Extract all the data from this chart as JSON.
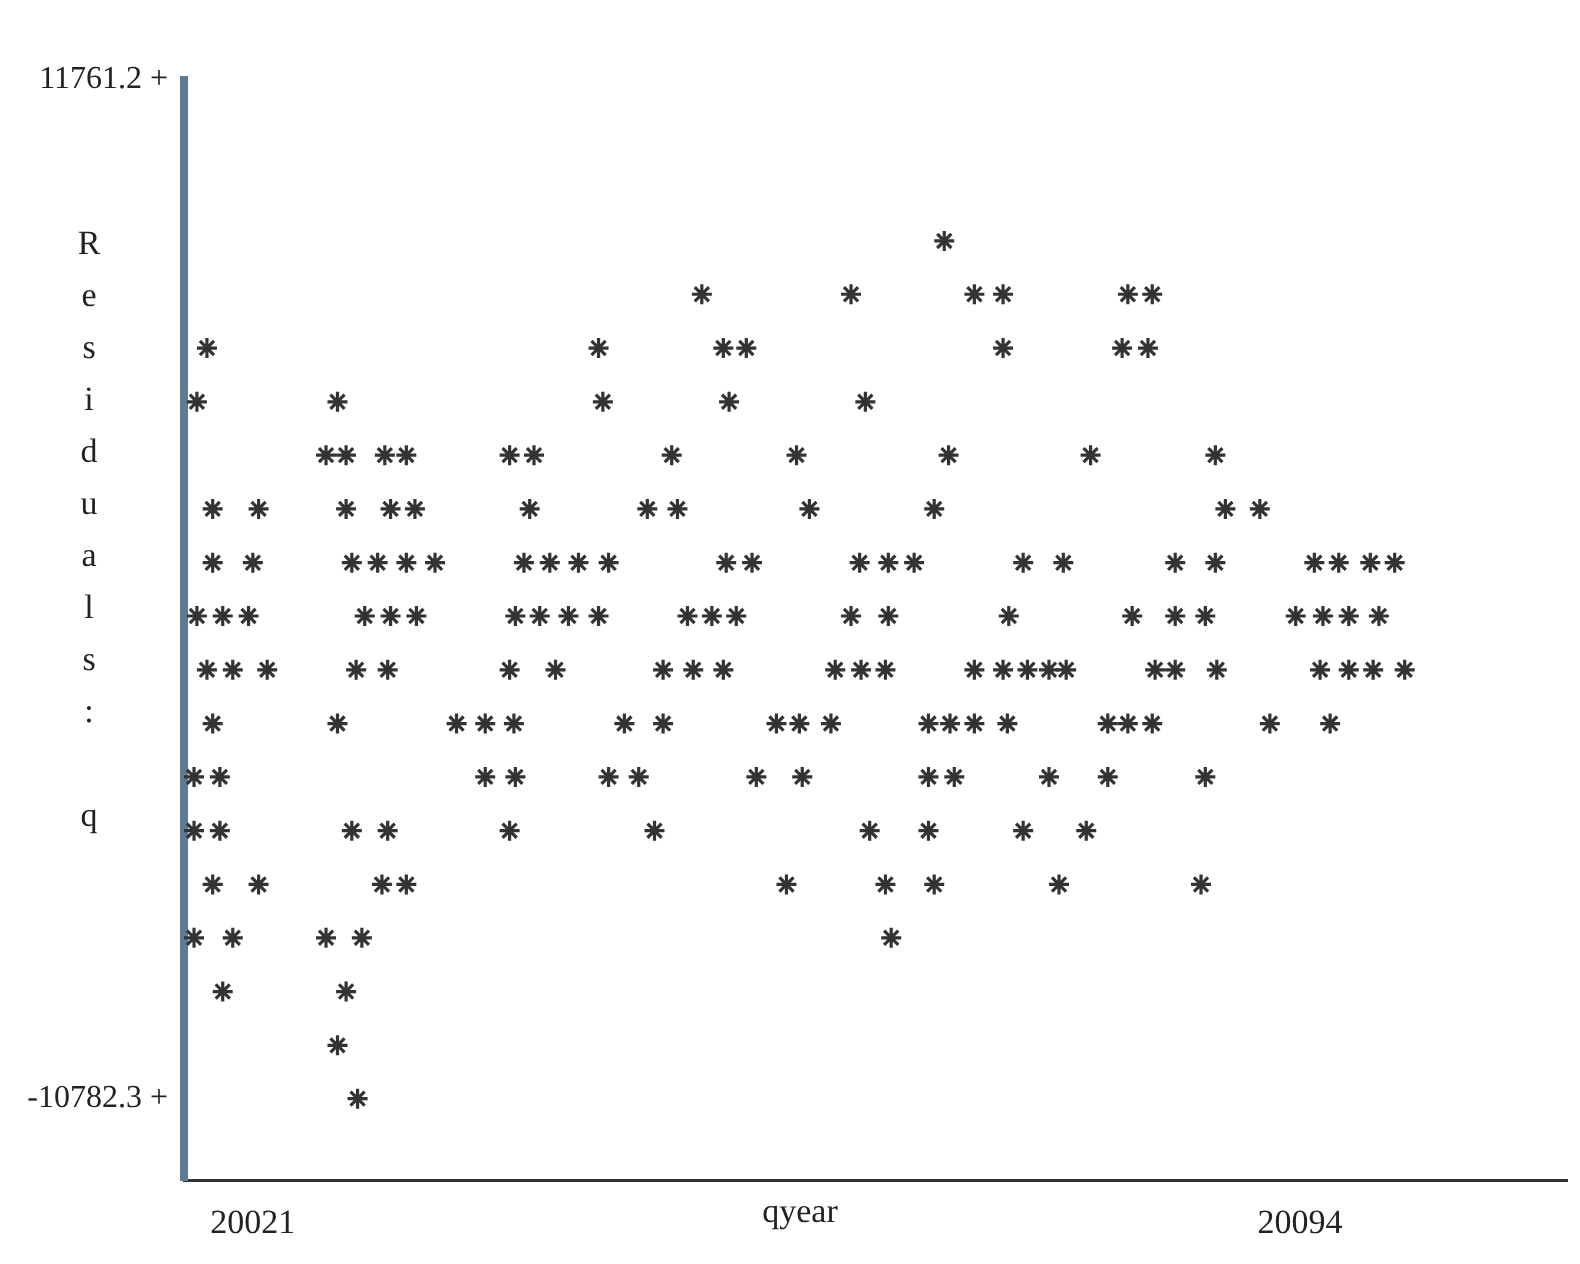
{
  "chart_data": {
    "type": "scatter",
    "xlabel": "qyear",
    "ylabel": "Residuals: q",
    "marker": "cross",
    "grid": false,
    "xlim": [
      20016.2,
      20112.6
    ],
    "xticks": [
      20021,
      20094
    ],
    "ylim": [
      -12580,
      11761.2
    ],
    "yticks": [
      {
        "value": 11761.2,
        "label": "11761.2 +"
      },
      {
        "value": -10782.3,
        "label": "-10782.3 +"
      }
    ],
    "series": [
      {
        "color": "#333333",
        "x": [
          20069.2,
          20052.3,
          20062.7,
          20071.3,
          20073.3,
          20082.0,
          20083.7,
          20017.8,
          20045.1,
          20053.8,
          20055.4,
          20073.3,
          20081.6,
          20083.4,
          20017.1,
          20026.9,
          20045.4,
          20054.2,
          20063.7,
          20026.1,
          20027.5,
          20030.2,
          20031.7,
          20038.9,
          20040.6,
          20050.2,
          20058.9,
          20069.5,
          20079.4,
          20088.1,
          20018.2,
          20021.4,
          20027.5,
          20030.6,
          20032.3,
          20040.3,
          20048.5,
          20050.6,
          20059.8,
          20068.5,
          20088.8,
          20091.2,
          20018.2,
          20021.0,
          20027.9,
          20029.7,
          20031.7,
          20033.7,
          20039.9,
          20041.7,
          20043.7,
          20045.8,
          20054.0,
          20055.8,
          20063.3,
          20065.3,
          20067.1,
          20074.7,
          20077.5,
          20085.3,
          20088.1,
          20095.0,
          20096.7,
          20098.9,
          20100.6,
          20017.1,
          20018.9,
          20020.7,
          20028.8,
          20030.6,
          20032.4,
          20039.3,
          20041.0,
          20043.0,
          20045.1,
          20051.3,
          20053.0,
          20054.7,
          20062.7,
          20065.3,
          20073.7,
          20082.3,
          20085.3,
          20087.4,
          20093.7,
          20095.6,
          20097.4,
          20099.5,
          20017.8,
          20019.6,
          20022.0,
          20028.2,
          20030.4,
          20038.9,
          20042.1,
          20049.6,
          20051.7,
          20053.8,
          20061.6,
          20063.4,
          20065.1,
          20071.3,
          20073.3,
          20075.0,
          20076.5,
          20077.7,
          20083.9,
          20085.3,
          20088.2,
          20095.4,
          20097.4,
          20099.1,
          20101.3,
          20018.2,
          20026.9,
          20035.2,
          20037.2,
          20039.2,
          20046.9,
          20049.6,
          20057.5,
          20059.1,
          20061.3,
          20068.1,
          20069.6,
          20071.3,
          20073.6,
          20080.6,
          20082.0,
          20083.7,
          20091.9,
          20096.1,
          20016.9,
          20018.7,
          20037.2,
          20039.3,
          20045.8,
          20047.9,
          20056.1,
          20059.3,
          20068.1,
          20069.9,
          20076.5,
          20080.6,
          20087.4,
          20016.9,
          20018.7,
          20027.9,
          20030.4,
          20038.9,
          20049.0,
          20064.0,
          20068.1,
          20074.7,
          20079.1,
          20018.2,
          20021.4,
          20030.0,
          20031.7,
          20058.2,
          20065.1,
          20068.5,
          20077.2,
          20087.1,
          20016.9,
          20019.6,
          20026.1,
          20028.6,
          20065.5,
          20018.9,
          20027.5,
          20026.9,
          20028.3
        ],
        "values": [
          8200,
          7020,
          7020,
          7020,
          7020,
          7020,
          7020,
          5830,
          5830,
          5830,
          5830,
          5830,
          5830,
          5830,
          4640,
          4640,
          4640,
          4640,
          4640,
          3460,
          3460,
          3460,
          3460,
          3460,
          3460,
          3460,
          3460,
          3460,
          3460,
          3460,
          2270,
          2270,
          2270,
          2270,
          2270,
          2270,
          2270,
          2270,
          2270,
          2270,
          2270,
          2270,
          1080,
          1080,
          1080,
          1080,
          1080,
          1080,
          1080,
          1080,
          1080,
          1080,
          1080,
          1080,
          1080,
          1080,
          1080,
          1080,
          1080,
          1080,
          1080,
          1080,
          1080,
          1080,
          1080,
          -100,
          -100,
          -100,
          -100,
          -100,
          -100,
          -100,
          -100,
          -100,
          -100,
          -100,
          -100,
          -100,
          -100,
          -100,
          -100,
          -100,
          -100,
          -100,
          -100,
          -100,
          -100,
          -100,
          -1290,
          -1290,
          -1290,
          -1290,
          -1290,
          -1290,
          -1290,
          -1290,
          -1290,
          -1290,
          -1290,
          -1290,
          -1290,
          -1290,
          -1290,
          -1290,
          -1290,
          -1290,
          -1290,
          -1290,
          -1290,
          -1290,
          -1290,
          -1290,
          -1290,
          -2480,
          -2480,
          -2480,
          -2480,
          -2480,
          -2480,
          -2480,
          -2480,
          -2480,
          -2480,
          -2480,
          -2480,
          -2480,
          -2480,
          -2480,
          -2480,
          -2480,
          -2480,
          -2480,
          -3660,
          -3660,
          -3660,
          -3660,
          -3660,
          -3660,
          -3660,
          -3660,
          -3660,
          -3660,
          -3660,
          -3660,
          -3660,
          -4850,
          -4850,
          -4850,
          -4850,
          -4850,
          -4850,
          -4850,
          -4850,
          -4850,
          -4850,
          -6040,
          -6040,
          -6040,
          -6040,
          -6040,
          -6040,
          -6040,
          -6040,
          -6040,
          -7220,
          -7220,
          -7220,
          -7220,
          -7220,
          -8410,
          -8410,
          -9600,
          -10780
        ]
      }
    ]
  }
}
